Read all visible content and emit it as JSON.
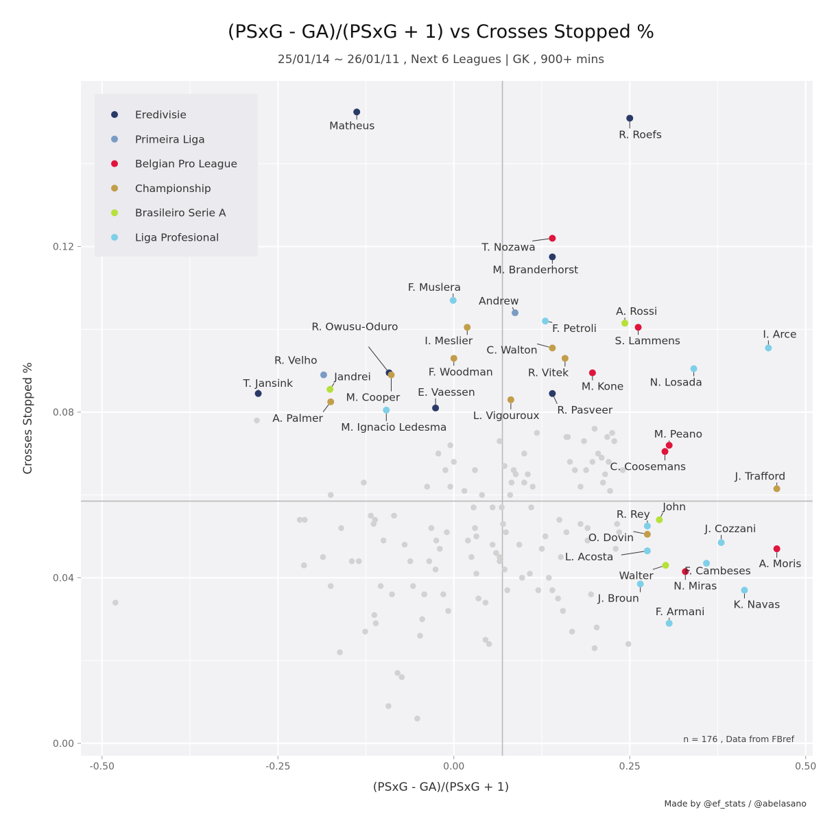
{
  "chart_data": {
    "type": "scatter",
    "title": "(PSxG - GA)/(PSxG + 1)  vs  Crosses Stopped %",
    "subtitle": "25/01/14 ~ 26/01/11 , Next 6 Leagues | GK , 900+ mins",
    "xlabel": "(PSxG - GA)/(PSxG + 1)",
    "ylabel": "Crosses Stopped %",
    "xlim": [
      -0.53,
      0.51
    ],
    "ylim": [
      -0.003,
      0.16
    ],
    "x_ticks": [
      {
        "value": -0.5,
        "label": "-0.50"
      },
      {
        "value": -0.25,
        "label": "-0.25"
      },
      {
        "value": 0,
        "label": "0.00"
      },
      {
        "value": 0.25,
        "label": "0.25"
      },
      {
        "value": 0.5,
        "label": "0.50"
      }
    ],
    "y_ticks": [
      {
        "value": 0,
        "label": "0.00"
      },
      {
        "value": 0.04,
        "label": "0.04"
      },
      {
        "value": 0.08,
        "label": "0.08"
      },
      {
        "value": 0.12,
        "label": "0.12"
      }
    ],
    "x_minor_ticks": [
      -0.375,
      -0.125,
      0.125,
      0.375
    ],
    "y_minor_ticks": [
      0.02,
      0.06,
      0.1,
      0.14
    ],
    "reference_lines": {
      "x_mean": 0.069,
      "y_mean": 0.0585
    },
    "grid": true,
    "legend_position": "top-left",
    "legend_title": "",
    "note": "n =  176  , Data from  FBref",
    "credit": "Made by @ef_stats / @abelasano",
    "series": [
      {
        "name": "Eredivisie",
        "color": "#2a3a66",
        "points": [
          {
            "label": "Matheus",
            "x": -0.138,
            "y": 0.1525
          },
          {
            "label": "R. Roefs",
            "x": 0.25,
            "y": 0.151
          },
          {
            "label": "M. Branderhorst",
            "x": 0.14,
            "y": 0.1175
          },
          {
            "label": "R. Owusu-Oduro",
            "x": -0.092,
            "y": 0.0895
          },
          {
            "label": "T. Jansink",
            "x": -0.278,
            "y": 0.0845
          },
          {
            "label": "E. Vaessen",
            "x": -0.026,
            "y": 0.081
          },
          {
            "label": "R. Pasveer",
            "x": 0.14,
            "y": 0.0845
          }
        ]
      },
      {
        "name": "Primeira Liga",
        "color": "#7a9cc4",
        "points": [
          {
            "label": "Andrew",
            "x": 0.087,
            "y": 0.104
          },
          {
            "label": "R. Velho",
            "x": -0.185,
            "y": 0.089
          }
        ]
      },
      {
        "name": "Belgian Pro League",
        "color": "#e0143c",
        "points": [
          {
            "label": "T. Nozawa",
            "x": 0.14,
            "y": 0.122
          },
          {
            "label": "S. Lammens",
            "x": 0.262,
            "y": 0.1005
          },
          {
            "label": "M. Kone",
            "x": 0.197,
            "y": 0.0895
          },
          {
            "label": "M. Peano",
            "x": 0.306,
            "y": 0.072
          },
          {
            "label": "C. Coosemans",
            "x": 0.3,
            "y": 0.0705
          },
          {
            "label": "A. Moris",
            "x": 0.459,
            "y": 0.047
          },
          {
            "label": "N. Miras",
            "x": 0.329,
            "y": 0.0415
          }
        ]
      },
      {
        "name": "Championship",
        "color": "#c29d4a",
        "points": [
          {
            "label": "I. Meslier",
            "x": 0.019,
            "y": 0.1005
          },
          {
            "label": "F. Woodman",
            "x": 0.0,
            "y": 0.093
          },
          {
            "label": "C. Walton",
            "x": 0.14,
            "y": 0.0955
          },
          {
            "label": "R. Vitek",
            "x": 0.158,
            "y": 0.093
          },
          {
            "label": "M. Cooper",
            "x": -0.089,
            "y": 0.089
          },
          {
            "label": "A. Palmer",
            "x": -0.175,
            "y": 0.0825
          },
          {
            "label": "L. Vigouroux",
            "x": 0.081,
            "y": 0.083
          },
          {
            "label": "J. Trafford",
            "x": 0.459,
            "y": 0.0615
          },
          {
            "label": "O. Dovin",
            "x": 0.275,
            "y": 0.0505
          }
        ]
      },
      {
        "name": "Brasileiro Serie A",
        "color": "#b6e03a",
        "points": [
          {
            "label": "A. Rossi",
            "x": 0.243,
            "y": 0.1015
          },
          {
            "label": "Jandrei",
            "x": -0.176,
            "y": 0.0855
          },
          {
            "label": "John",
            "x": 0.292,
            "y": 0.054
          },
          {
            "label": "Walter",
            "x": 0.301,
            "y": 0.043
          }
        ]
      },
      {
        "name": "Liga Profesional",
        "color": "#7fcfe8",
        "points": [
          {
            "label": "F. Muslera",
            "x": -0.001,
            "y": 0.107
          },
          {
            "label": "F. Petroli",
            "x": 0.13,
            "y": 0.102
          },
          {
            "label": "I. Arce",
            "x": 0.447,
            "y": 0.0955
          },
          {
            "label": "N. Losada",
            "x": 0.341,
            "y": 0.0905
          },
          {
            "label": "M. Ignacio Ledesma",
            "x": -0.096,
            "y": 0.0805
          },
          {
            "label": "R. Rey",
            "x": 0.275,
            "y": 0.0525
          },
          {
            "label": "J. Cozzani",
            "x": 0.38,
            "y": 0.0485
          },
          {
            "label": "L. Acosta",
            "x": 0.275,
            "y": 0.0465
          },
          {
            "label": "F. Cambeses",
            "x": 0.359,
            "y": 0.0435
          },
          {
            "label": "J. Broun",
            "x": 0.265,
            "y": 0.0385
          },
          {
            "label": "K. Navas",
            "x": 0.413,
            "y": 0.037
          },
          {
            "label": "F. Armani",
            "x": 0.306,
            "y": 0.029
          }
        ]
      }
    ],
    "background_points": [
      [
        -0.481,
        0.034
      ],
      [
        -0.28,
        0.078
      ],
      [
        -0.219,
        0.054
      ],
      [
        -0.212,
        0.054
      ],
      [
        -0.213,
        0.043
      ],
      [
        -0.186,
        0.045
      ],
      [
        -0.175,
        0.06
      ],
      [
        -0.175,
        0.038
      ],
      [
        -0.16,
        0.052
      ],
      [
        -0.162,
        0.022
      ],
      [
        -0.145,
        0.044
      ],
      [
        -0.135,
        0.044
      ],
      [
        -0.128,
        0.063
      ],
      [
        -0.126,
        0.027
      ],
      [
        -0.118,
        0.055
      ],
      [
        -0.114,
        0.053
      ],
      [
        -0.112,
        0.054
      ],
      [
        -0.113,
        0.031
      ],
      [
        -0.111,
        0.029
      ],
      [
        -0.104,
        0.038
      ],
      [
        -0.1,
        0.049
      ],
      [
        -0.093,
        0.009
      ],
      [
        -0.088,
        0.036
      ],
      [
        -0.085,
        0.055
      ],
      [
        -0.08,
        0.017
      ],
      [
        -0.074,
        0.016
      ],
      [
        -0.07,
        0.048
      ],
      [
        -0.062,
        0.044
      ],
      [
        -0.058,
        0.038
      ],
      [
        -0.052,
        0.006
      ],
      [
        -0.048,
        0.026
      ],
      [
        -0.045,
        0.03
      ],
      [
        -0.042,
        0.036
      ],
      [
        -0.038,
        0.062
      ],
      [
        -0.035,
        0.044
      ],
      [
        -0.032,
        0.052
      ],
      [
        -0.026,
        0.042
      ],
      [
        -0.025,
        0.049
      ],
      [
        -0.02,
        0.047
      ],
      [
        -0.015,
        0.036
      ],
      [
        -0.01,
        0.051
      ],
      [
        -0.008,
        0.032
      ],
      [
        -0.022,
        0.07
      ],
      [
        -0.012,
        0.066
      ],
      [
        -0.005,
        0.072
      ],
      [
        0.0,
        0.068
      ],
      [
        -0.005,
        0.062
      ],
      [
        0.015,
        0.061
      ],
      [
        0.02,
        0.049
      ],
      [
        0.025,
        0.045
      ],
      [
        0.03,
        0.066
      ],
      [
        0.028,
        0.057
      ],
      [
        0.03,
        0.052
      ],
      [
        0.032,
        0.05
      ],
      [
        0.032,
        0.041
      ],
      [
        0.035,
        0.035
      ],
      [
        0.04,
        0.06
      ],
      [
        0.045,
        0.025
      ],
      [
        0.045,
        0.034
      ],
      [
        0.05,
        0.024
      ],
      [
        0.055,
        0.057
      ],
      [
        0.055,
        0.048
      ],
      [
        0.06,
        0.046
      ],
      [
        0.065,
        0.073
      ],
      [
        0.065,
        0.045
      ],
      [
        0.065,
        0.044
      ],
      [
        0.068,
        0.057
      ],
      [
        0.07,
        0.053
      ],
      [
        0.072,
        0.067
      ],
      [
        0.072,
        0.042
      ],
      [
        0.074,
        0.051
      ],
      [
        0.076,
        0.037
      ],
      [
        0.08,
        0.06
      ],
      [
        0.082,
        0.063
      ],
      [
        0.085,
        0.066
      ],
      [
        0.088,
        0.065
      ],
      [
        0.093,
        0.048
      ],
      [
        0.097,
        0.04
      ],
      [
        0.1,
        0.07
      ],
      [
        0.1,
        0.063
      ],
      [
        0.105,
        0.065
      ],
      [
        0.108,
        0.041
      ],
      [
        0.11,
        0.057
      ],
      [
        0.112,
        0.062
      ],
      [
        0.118,
        0.075
      ],
      [
        0.12,
        0.037
      ],
      [
        0.125,
        0.047
      ],
      [
        0.13,
        0.05
      ],
      [
        0.135,
        0.04
      ],
      [
        0.14,
        0.037
      ],
      [
        0.148,
        0.035
      ],
      [
        0.15,
        0.054
      ],
      [
        0.152,
        0.045
      ],
      [
        0.155,
        0.032
      ],
      [
        0.16,
        0.051
      ],
      [
        0.16,
        0.074
      ],
      [
        0.162,
        0.074
      ],
      [
        0.165,
        0.068
      ],
      [
        0.168,
        0.027
      ],
      [
        0.172,
        0.066
      ],
      [
        0.18,
        0.053
      ],
      [
        0.18,
        0.062
      ],
      [
        0.185,
        0.073
      ],
      [
        0.188,
        0.066
      ],
      [
        0.19,
        0.052
      ],
      [
        0.19,
        0.049
      ],
      [
        0.195,
        0.036
      ],
      [
        0.197,
        0.068
      ],
      [
        0.2,
        0.076
      ],
      [
        0.2,
        0.023
      ],
      [
        0.203,
        0.028
      ],
      [
        0.205,
        0.07
      ],
      [
        0.21,
        0.069
      ],
      [
        0.212,
        0.063
      ],
      [
        0.215,
        0.065
      ],
      [
        0.218,
        0.074
      ],
      [
        0.22,
        0.068
      ],
      [
        0.222,
        0.061
      ],
      [
        0.225,
        0.075
      ],
      [
        0.228,
        0.073
      ],
      [
        0.23,
        0.047
      ],
      [
        0.232,
        0.053
      ],
      [
        0.235,
        0.051
      ],
      [
        0.24,
        0.066
      ],
      [
        0.248,
        0.024
      ]
    ]
  }
}
